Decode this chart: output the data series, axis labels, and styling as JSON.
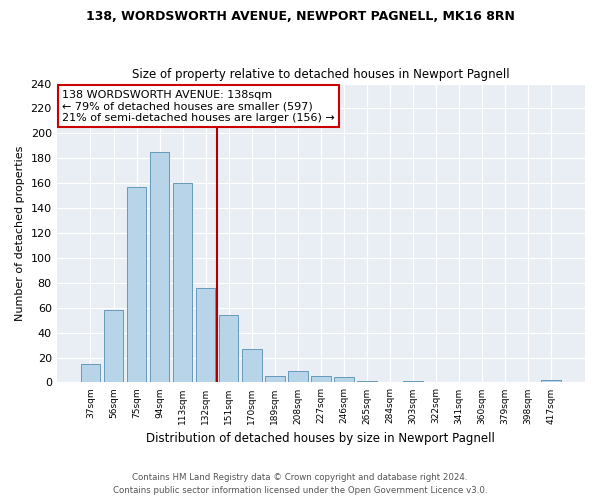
{
  "title1": "138, WORDSWORTH AVENUE, NEWPORT PAGNELL, MK16 8RN",
  "title2": "Size of property relative to detached houses in Newport Pagnell",
  "xlabel": "Distribution of detached houses by size in Newport Pagnell",
  "ylabel": "Number of detached properties",
  "bar_labels": [
    "37sqm",
    "56sqm",
    "75sqm",
    "94sqm",
    "113sqm",
    "132sqm",
    "151sqm",
    "170sqm",
    "189sqm",
    "208sqm",
    "227sqm",
    "246sqm",
    "265sqm",
    "284sqm",
    "303sqm",
    "322sqm",
    "341sqm",
    "360sqm",
    "379sqm",
    "398sqm",
    "417sqm"
  ],
  "bar_values": [
    15,
    58,
    157,
    185,
    160,
    76,
    54,
    27,
    5,
    9,
    5,
    4,
    1,
    0,
    1,
    0,
    0,
    0,
    0,
    0,
    2
  ],
  "bar_color": "#b8d4e8",
  "bar_edge_color": "#6699bb",
  "vline_x": 5.5,
  "vline_color": "#aa0000",
  "annotation_title": "138 WORDSWORTH AVENUE: 138sqm",
  "annotation_line1": "← 79% of detached houses are smaller (597)",
  "annotation_line2": "21% of semi-detached houses are larger (156) →",
  "annotation_box_color": "#ffffff",
  "annotation_border_color": "#cc0000",
  "ylim": [
    0,
    240
  ],
  "yticks": [
    0,
    20,
    40,
    60,
    80,
    100,
    120,
    140,
    160,
    180,
    200,
    220,
    240
  ],
  "footnote1": "Contains HM Land Registry data © Crown copyright and database right 2024.",
  "footnote2": "Contains public sector information licensed under the Open Government Licence v3.0.",
  "bg_color": "#ffffff",
  "plot_bg_color": "#e8eef4"
}
